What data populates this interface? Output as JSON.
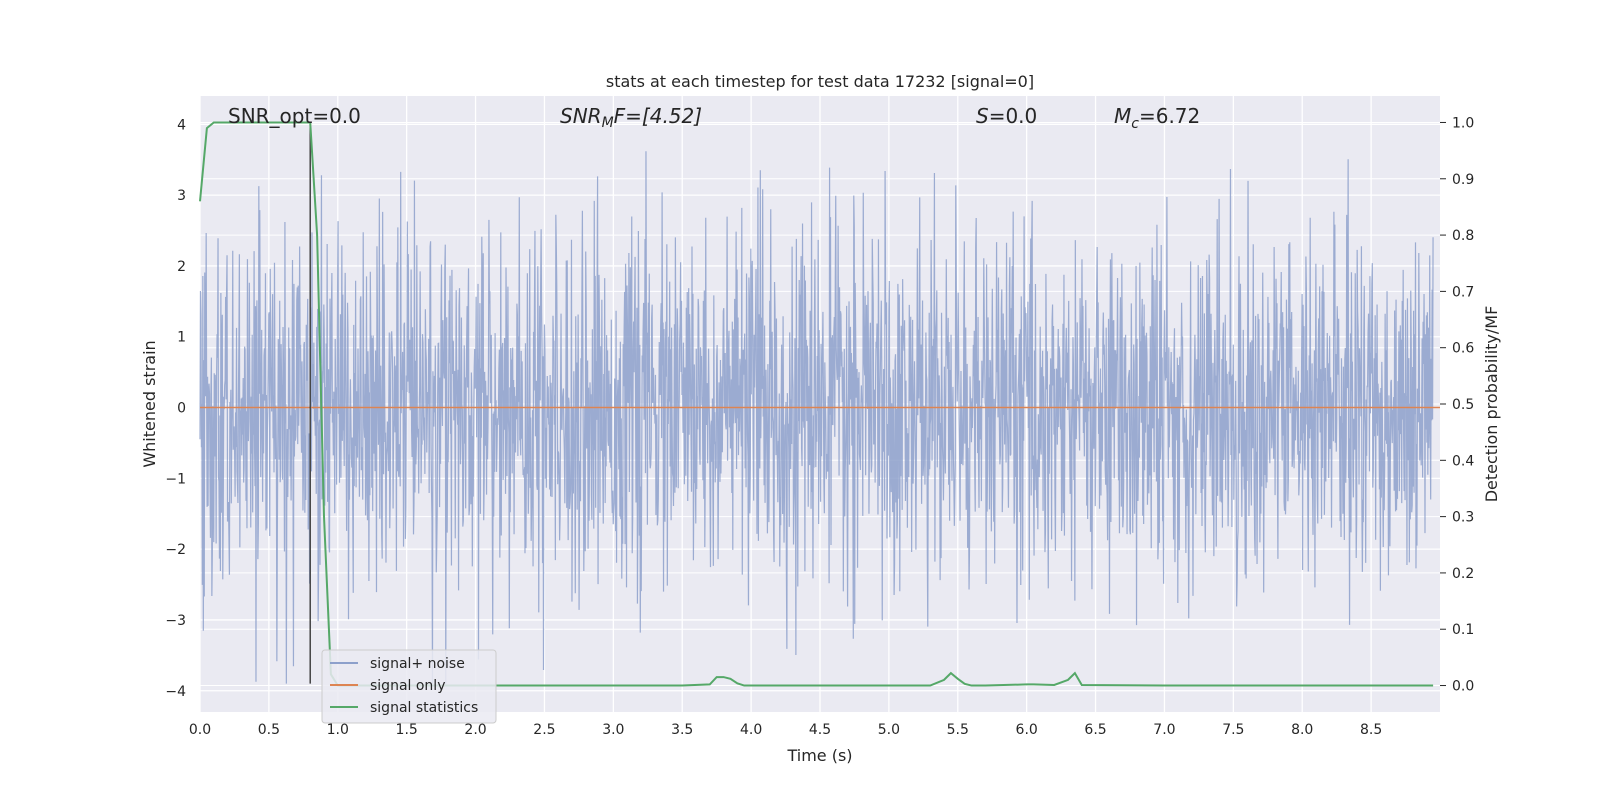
{
  "chart_data": {
    "type": "line",
    "title": "stats at each timestep for test data 17232 [signal=0]",
    "xlabel": "Time (s)",
    "ylabel": "Whitened strain",
    "ylabel_right": "Detection probability/MF",
    "xlim": [
      0.0,
      9.0
    ],
    "ylim": [
      -4.3,
      4.4
    ],
    "ylim_right": [
      -0.047,
      1.047
    ],
    "x_ticks": [
      0.0,
      0.5,
      1.0,
      1.5,
      2.0,
      2.5,
      3.0,
      3.5,
      4.0,
      4.5,
      5.0,
      5.5,
      6.0,
      6.5,
      7.0,
      7.5,
      8.0,
      8.5
    ],
    "x_tick_labels": [
      "0.0",
      "0.5",
      "1.0",
      "1.5",
      "2.0",
      "2.5",
      "3.0",
      "3.5",
      "4.0",
      "4.5",
      "5.0",
      "5.5",
      "6.0",
      "6.5",
      "7.0",
      "7.5",
      "8.0",
      "8.5"
    ],
    "y_ticks": [
      4,
      3,
      2,
      1,
      0,
      -1,
      -2,
      -3,
      -4
    ],
    "y_tick_labels": [
      "4",
      "3",
      "2",
      "1",
      "0",
      "−1",
      "−2",
      "−3",
      "−4"
    ],
    "y_right_ticks": [
      1.0,
      0.9,
      0.8,
      0.7,
      0.6,
      0.5,
      0.4,
      0.3,
      0.2,
      0.1,
      0.0
    ],
    "y_right_tick_labels": [
      "1.0",
      "0.9",
      "0.8",
      "0.7",
      "0.6",
      "0.5",
      "0.4",
      "0.3",
      "0.2",
      "0.1",
      "0.0"
    ],
    "grid": true,
    "legend_position": "lower-left",
    "annotations": {
      "snr_opt": "SNR_opt=0.0",
      "snr_mf_label": "SNR",
      "snr_mf_sub": "M",
      "snr_mf_rest": "F=[4.52]",
      "s_label": "S",
      "s_rest": "=0.0",
      "mc_label": "M",
      "mc_sub": "c",
      "mc_rest": "=6.72"
    },
    "vertical_marker_x": 0.8,
    "series": [
      {
        "name": "signal+ noise",
        "axis": "left",
        "color": "#8da0cb",
        "kind": "noise",
        "envelope": {
          "typical_abs": 1.2,
          "max_pos": 4.0,
          "min_neg": -3.9
        }
      },
      {
        "name": "signal only",
        "axis": "left",
        "color": "#dd8452",
        "x": [
          0.0,
          9.0
        ],
        "y": [
          0.0,
          0.0
        ]
      },
      {
        "name": "signal statistics",
        "axis": "right",
        "color": "#55a868",
        "x": [
          0.0,
          0.05,
          0.1,
          0.15,
          0.3,
          0.5,
          0.7,
          0.8,
          0.85,
          0.9,
          0.95,
          1.0,
          2.0,
          3.0,
          3.2,
          3.5,
          3.7,
          3.75,
          3.8,
          3.85,
          3.9,
          3.95,
          4.0,
          4.5,
          5.0,
          5.3,
          5.4,
          5.45,
          5.5,
          5.55,
          5.6,
          5.7,
          6.0,
          6.05,
          6.2,
          6.3,
          6.35,
          6.4,
          7.0,
          8.0,
          8.95
        ],
        "y": [
          0.86,
          0.99,
          1.0,
          1.0,
          1.0,
          1.0,
          1.0,
          1.0,
          0.8,
          0.3,
          0.02,
          0.0,
          0.0,
          0.0,
          0.0,
          0.0,
          0.002,
          0.015,
          0.015,
          0.012,
          0.004,
          0.0,
          0.0,
          0.0,
          0.0,
          0.0,
          0.01,
          0.022,
          0.012,
          0.003,
          0.0,
          0.0,
          0.002,
          0.002,
          0.001,
          0.01,
          0.022,
          0.001,
          0.0,
          0.0,
          0.0
        ]
      }
    ]
  }
}
